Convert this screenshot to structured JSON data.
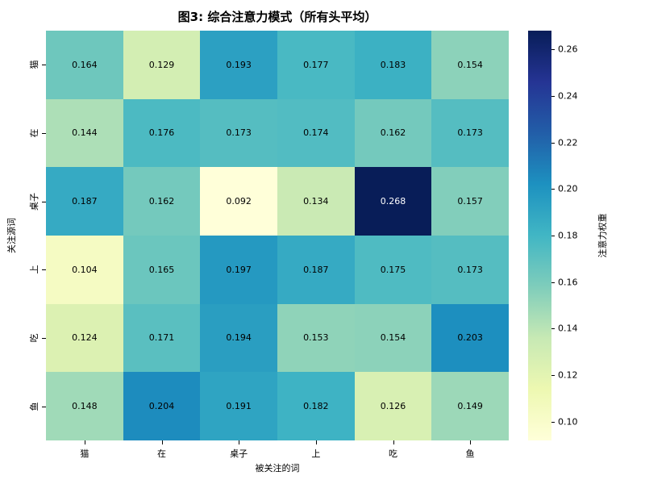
{
  "chart_data": {
    "type": "heatmap",
    "title": "图3: 综合注意力模式（所有头平均）",
    "xlabel": "被关注的词",
    "ylabel": "关注源词",
    "colorbar_label": "注意力权重",
    "x_categories": [
      "猫",
      "在",
      "桌子",
      "上",
      "吃",
      "鱼"
    ],
    "y_categories": [
      "猫",
      "在",
      "桌子",
      "上",
      "吃",
      "鱼"
    ],
    "values": [
      [
        0.164,
        0.129,
        0.193,
        0.177,
        0.183,
        0.154
      ],
      [
        0.144,
        0.176,
        0.173,
        0.174,
        0.162,
        0.173
      ],
      [
        0.187,
        0.162,
        0.092,
        0.134,
        0.268,
        0.157
      ],
      [
        0.104,
        0.165,
        0.197,
        0.187,
        0.175,
        0.173
      ],
      [
        0.124,
        0.171,
        0.194,
        0.153,
        0.154,
        0.203
      ],
      [
        0.148,
        0.204,
        0.191,
        0.182,
        0.126,
        0.149
      ]
    ],
    "vmin": 0.092,
    "vmax": 0.268,
    "value_decimals": 3,
    "colorbar_ticks": [
      0.26,
      0.24,
      0.22,
      0.2,
      0.18,
      0.16,
      0.14,
      0.12,
      0.1
    ],
    "colorbar_tick_decimals": 2,
    "grid": false,
    "legend_position": "right-colorbar",
    "colormap": {
      "name": "YlGnBu",
      "stops": [
        "#ffffd9",
        "#edf8b1",
        "#c7e9b4",
        "#7fcdbb",
        "#41b6c4",
        "#1d91c0",
        "#225ea8",
        "#253494",
        "#081d58"
      ]
    },
    "text_colors": {
      "light_cells": "#000000",
      "dark_cells": "#ffffff"
    }
  }
}
